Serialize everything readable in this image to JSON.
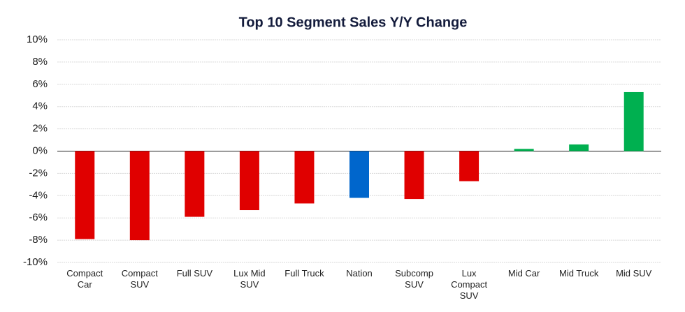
{
  "chart_data": {
    "type": "bar",
    "title": "Top 10 Segment Sales Y/Y Change",
    "categories": [
      "Compact Car",
      "Compact SUV",
      "Full SUV",
      "Lux Mid SUV",
      "Full Truck",
      "Nation",
      "Subcomp SUV",
      "Lux Compact SUV",
      "Mid Car",
      "Mid Truck",
      "Mid SUV"
    ],
    "values": [
      -7.9,
      -8.0,
      -5.9,
      -5.3,
      -4.7,
      -4.2,
      -4.3,
      -2.7,
      0.2,
      0.6,
      5.3
    ],
    "colors": [
      "#e00000",
      "#e00000",
      "#e00000",
      "#e00000",
      "#e00000",
      "#0066cc",
      "#e00000",
      "#e00000",
      "#00b050",
      "#00b050",
      "#00b050"
    ],
    "ylim": [
      -10,
      10
    ],
    "yticks": [
      {
        "value": -10,
        "label": "-10%"
      },
      {
        "value": -8,
        "label": "-8%"
      },
      {
        "value": -6,
        "label": "-6%"
      },
      {
        "value": -4,
        "label": "-4%"
      },
      {
        "value": -2,
        "label": "-2%"
      },
      {
        "value": 0,
        "label": "0%"
      },
      {
        "value": 2,
        "label": "2%"
      },
      {
        "value": 4,
        "label": "4%"
      },
      {
        "value": 6,
        "label": "6%"
      },
      {
        "value": 8,
        "label": "8%"
      },
      {
        "value": 10,
        "label": "10%"
      }
    ],
    "grid": true
  }
}
